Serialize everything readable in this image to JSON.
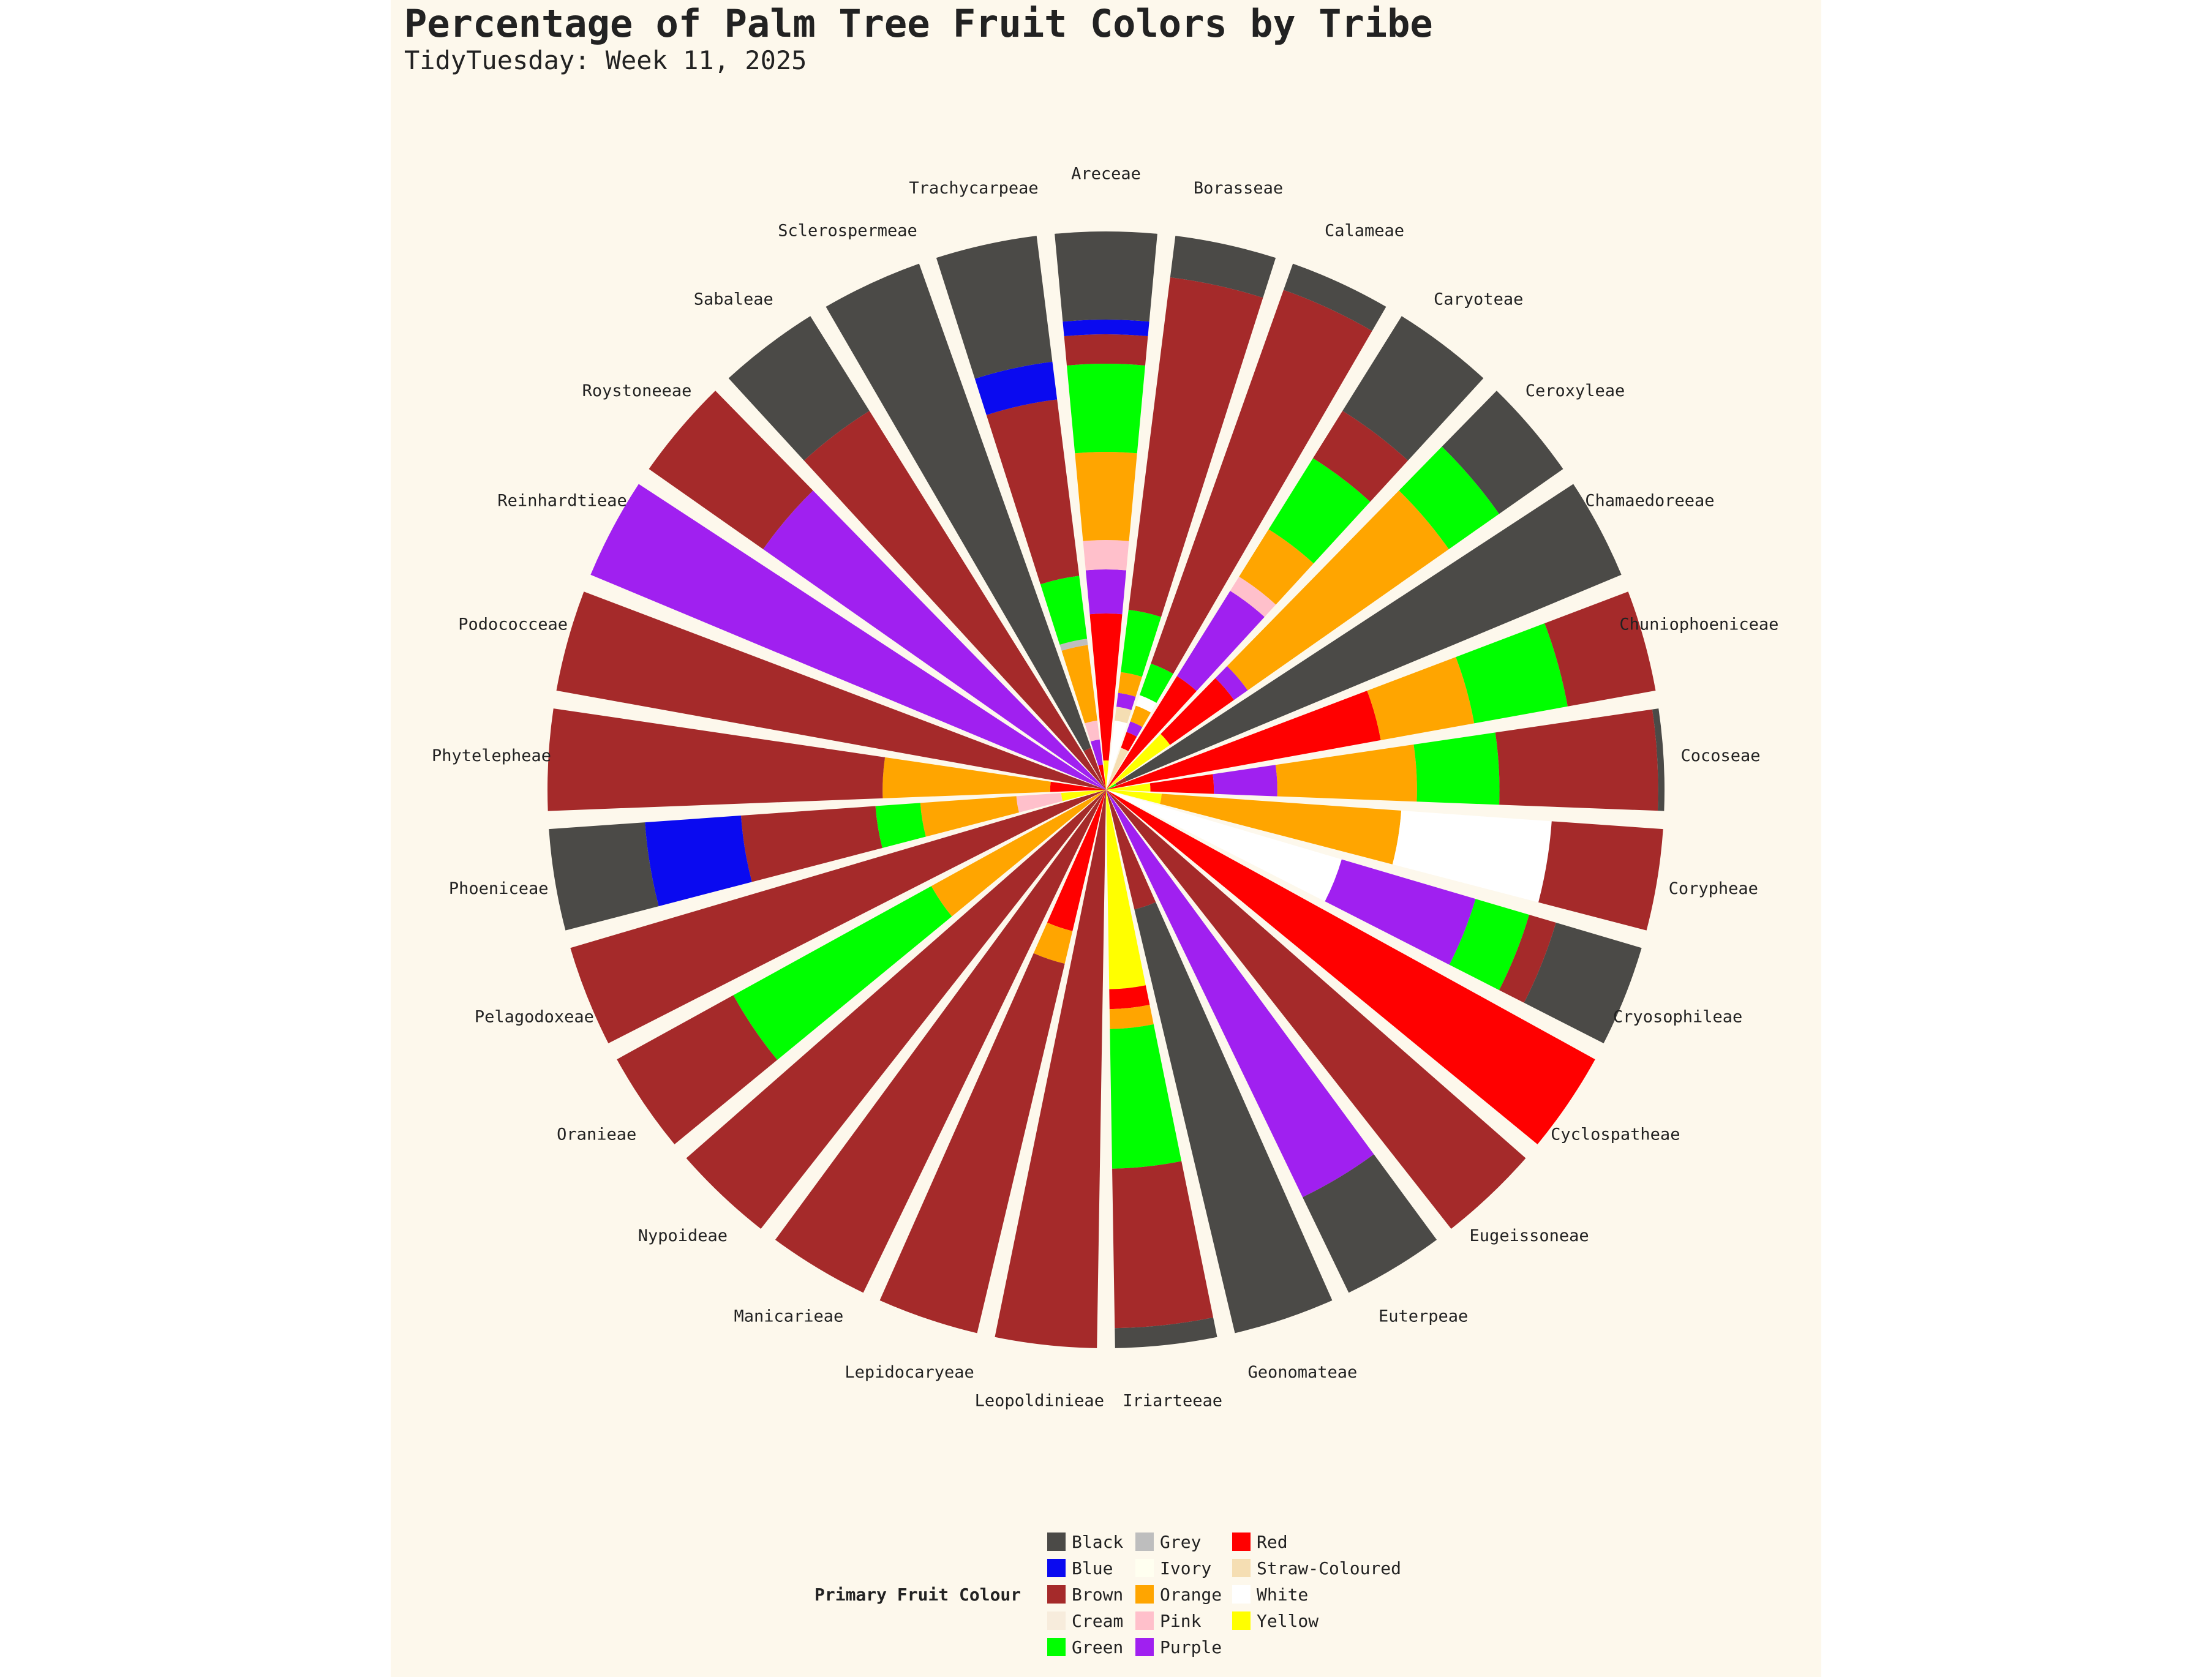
{
  "title": "Percentage of Palm Tree Fruit Colors by Tribe",
  "subtitle": "TidyTuesday: Week 11, 2025",
  "chart_data": {
    "type": "bar",
    "coord": "polar",
    "stacked": true,
    "value_unit": "percent of genera",
    "legend_title": "Primary Fruit Colour",
    "legend_position": "bottom",
    "colors": {
      "Black": "#4b4a47",
      "Blue": "#0a0af0",
      "Brown": "#a52a2a",
      "Cream": "#f7ecdc",
      "Green": "#00ff00",
      "Grey": "#bebebe",
      "Ivory": "#fffff0",
      "Orange": "#ffa500",
      "Pink": "#ffc0cb",
      "Purple": "#a020f0",
      "Red": "#ff0000",
      "Straw-Coloured": "#f5deb3",
      "White": "#ffffff",
      "Yellow": "#ffff00"
    },
    "legend": [
      "Black",
      "Blue",
      "Brown",
      "Cream",
      "Green",
      "Grey",
      "Ivory",
      "Orange",
      "Pink",
      "Purple",
      "Red",
      "Straw-Coloured",
      "White",
      "Yellow"
    ],
    "categories": [
      "Areceae",
      "Borasseae",
      "Calameae",
      "Caryoteae",
      "Ceroxyleae",
      "Chamaedoreeae",
      "Chuniophoeniceae",
      "Cocoseae",
      "Corypheae",
      "Cryosophileae",
      "Cyclospatheae",
      "Eugeissoneae",
      "Euterpeae",
      "Geonomateae",
      "Iriarteeae",
      "Leopoldinieae",
      "Lepidocaryeae",
      "Manicarieae",
      "Nypoideae",
      "Oranieae",
      "Pelagodoxeae",
      "Phoeniceae",
      "Phytelepheae",
      "Podococceae",
      "Reinhardtieae",
      "Roystoneeae",
      "Sabaleae",
      "Sclerospermeae",
      "Trachycarpeae"
    ],
    "stacks": [
      [
        [
          "Yellow",
          2
        ],
        [
          "Red",
          10
        ],
        [
          "Purple",
          3
        ],
        [
          "Pink",
          2
        ],
        [
          "Orange",
          6
        ],
        [
          "Green",
          6
        ],
        [
          "Brown",
          2
        ],
        [
          "Blue",
          1
        ],
        [
          "Black",
          6
        ]
      ],
      [
        [
          "White",
          10
        ],
        [
          "Straw-Coloured",
          2
        ],
        [
          "Purple",
          2
        ],
        [
          "Orange",
          3
        ],
        [
          "Green",
          9
        ],
        [
          "Brown",
          48
        ],
        [
          "Black",
          6
        ]
      ],
      [
        [
          "Straw-Coloured",
          8
        ],
        [
          "Red",
          3
        ],
        [
          "Purple",
          2
        ],
        [
          "Orange",
          3
        ],
        [
          "White",
          2
        ],
        [
          "Green",
          6
        ],
        [
          "Brown",
          71
        ],
        [
          "Black",
          5
        ]
      ],
      [
        [
          "Red",
          24
        ],
        [
          "Purple",
          18
        ],
        [
          "Pink",
          3
        ],
        [
          "Orange",
          10
        ],
        [
          "Green",
          15
        ],
        [
          "Brown",
          10
        ],
        [
          "Black",
          20
        ]
      ],
      [
        [
          "Yellow",
          14
        ],
        [
          "Red",
          14
        ],
        [
          "Purple",
          3
        ],
        [
          "Orange",
          44
        ],
        [
          "Green",
          11
        ],
        [
          "Black",
          14
        ]
      ],
      [
        [
          "Green",
          2
        ],
        [
          "Brown",
          2
        ],
        [
          "Black",
          96
        ]
      ],
      [
        [
          "Red",
          50
        ],
        [
          "Orange",
          17
        ],
        [
          "Green",
          17
        ],
        [
          "Brown",
          16
        ]
      ],
      [
        [
          "Yellow",
          7
        ],
        [
          "Red",
          10
        ],
        [
          "Purple",
          10
        ],
        [
          "Orange",
          22
        ],
        [
          "Green",
          13
        ],
        [
          "Brown",
          25
        ],
        [
          "Black",
          1
        ]
      ],
      [
        [
          "Yellow",
          10
        ],
        [
          "Orange",
          43
        ],
        [
          "White",
          27
        ],
        [
          "Brown",
          20
        ]
      ],
      [
        [
          "White",
          44
        ],
        [
          "Purple",
          25
        ],
        [
          "Green",
          10
        ],
        [
          "Brown",
          5
        ],
        [
          "Black",
          16
        ]
      ],
      [
        [
          "Red",
          100
        ]
      ],
      [
        [
          "Brown",
          100
        ]
      ],
      [
        [
          "Purple",
          81
        ],
        [
          "Black",
          19
        ]
      ],
      [
        [
          "Brown",
          22
        ],
        [
          "Black",
          78
        ]
      ],
      [
        [
          "Yellow",
          40
        ],
        [
          "Red",
          4
        ],
        [
          "Orange",
          4
        ],
        [
          "Green",
          28
        ],
        [
          "Brown",
          32
        ],
        [
          "Black",
          4
        ]
      ],
      [
        [
          "Brown",
          100
        ]
      ],
      [
        [
          "Red",
          26
        ],
        [
          "Orange",
          6
        ],
        [
          "Brown",
          68
        ]
      ],
      [
        [
          "Brown",
          100
        ]
      ],
      [
        [
          "Brown",
          100
        ]
      ],
      [
        [
          "Orange",
          30
        ],
        [
          "Green",
          34
        ],
        [
          "Brown",
          20
        ]
      ],
      [
        [
          "Brown",
          100
        ]
      ],
      [
        [
          "Yellow",
          7
        ],
        [
          "Pink",
          7
        ],
        [
          "Orange",
          15
        ],
        [
          "Green",
          7
        ],
        [
          "Brown",
          21
        ],
        [
          "Blue",
          15
        ],
        [
          "Black",
          15
        ]
      ],
      [
        [
          "Red",
          10
        ],
        [
          "Orange",
          30
        ],
        [
          "Brown",
          60
        ]
      ],
      [
        [
          "Brown",
          100
        ]
      ],
      [
        [
          "Purple",
          100
        ]
      ],
      [
        [
          "Purple",
          75
        ],
        [
          "Brown",
          25
        ]
      ],
      [
        [
          "Brown",
          80
        ],
        [
          "Black",
          20
        ]
      ],
      [
        [
          "Brown",
          8
        ],
        [
          "Black",
          92
        ]
      ],
      [
        [
          "Red",
          4
        ],
        [
          "Purple",
          4
        ],
        [
          "Pink",
          3
        ],
        [
          "Orange",
          12
        ],
        [
          "Grey",
          1
        ],
        [
          "Green",
          10
        ],
        [
          "Brown",
          28
        ],
        [
          "Blue",
          6
        ],
        [
          "Black",
          20
        ]
      ]
    ]
  }
}
